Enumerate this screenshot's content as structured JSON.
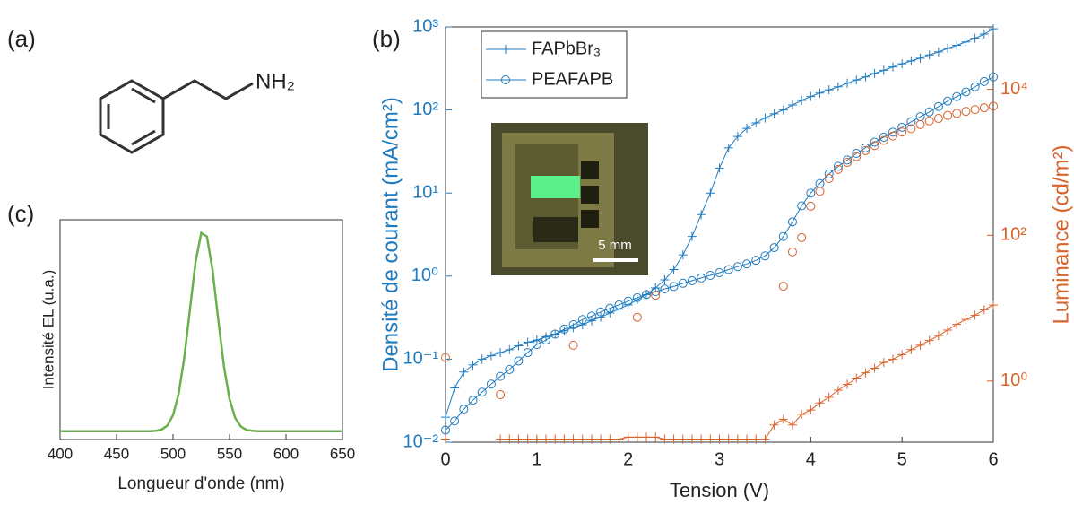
{
  "molecule": {
    "panel": "(a)",
    "group": "NH₂"
  },
  "inset": {
    "scale_label": "5 mm"
  },
  "chart_data": [
    {
      "type": "line",
      "panel": "(c)",
      "xlabel": "Longueur d'onde (nm)",
      "ylabel": "Intensité EL (u.a.)",
      "x": [
        400,
        405,
        410,
        415,
        420,
        425,
        430,
        435,
        440,
        445,
        450,
        455,
        460,
        465,
        470,
        475,
        480,
        485,
        490,
        495,
        500,
        505,
        510,
        515,
        520,
        525,
        530,
        535,
        540,
        545,
        550,
        555,
        560,
        565,
        570,
        575,
        580,
        585,
        590,
        595,
        600,
        605,
        610,
        615,
        620,
        625,
        630,
        635,
        640,
        645,
        650
      ],
      "values": [
        0.04,
        0.04,
        0.04,
        0.04,
        0.04,
        0.04,
        0.04,
        0.04,
        0.04,
        0.04,
        0.04,
        0.04,
        0.04,
        0.04,
        0.04,
        0.04,
        0.04,
        0.042,
        0.048,
        0.067,
        0.116,
        0.219,
        0.392,
        0.623,
        0.85,
        0.987,
        0.97,
        0.809,
        0.574,
        0.352,
        0.193,
        0.103,
        0.062,
        0.046,
        0.042,
        0.04,
        0.04,
        0.04,
        0.04,
        0.04,
        0.04,
        0.04,
        0.04,
        0.04,
        0.04,
        0.04,
        0.04,
        0.04,
        0.04,
        0.04,
        0.04
      ],
      "color": "#6ab04c",
      "xlim": [
        400,
        650
      ],
      "xticks": [
        400,
        450,
        500,
        550,
        600,
        650
      ],
      "ylim": [
        0,
        1.05
      ]
    },
    {
      "type": "line",
      "panel": "(b)",
      "xlabel": "Tension (V)",
      "ylabel": "Densité de courant (mA/cm²)",
      "y2label": "Luminance (cd/m²)",
      "y_color": "#1f7bbf",
      "y2_color": "#d9622b",
      "ylog": true,
      "y2log": true,
      "legend": "top-left",
      "x": [
        0,
        0.1,
        0.2,
        0.3,
        0.4,
        0.5,
        0.6,
        0.7,
        0.8,
        0.9,
        1,
        1.1,
        1.2,
        1.3,
        1.4,
        1.5,
        1.6,
        1.7,
        1.8,
        1.9,
        2,
        2.1,
        2.2,
        2.3,
        2.4,
        2.5,
        2.6,
        2.7,
        2.8,
        2.9,
        3,
        3.1,
        3.2,
        3.3,
        3.4,
        3.5,
        3.6,
        3.7,
        3.8,
        3.9,
        4,
        4.1,
        4.2,
        4.3,
        4.4,
        4.5,
        4.6,
        4.7,
        4.8,
        4.9,
        5,
        5.1,
        5.2,
        5.3,
        5.4,
        5.5,
        5.6,
        5.7,
        5.8,
        5.9,
        6
      ],
      "xlim": [
        0,
        6
      ],
      "xticks": [
        0,
        1,
        2,
        3,
        4,
        5,
        6
      ],
      "ylim": [
        0.01,
        1000
      ],
      "yticks": [
        {
          "value": 0.01,
          "label": "10⁻²"
        },
        {
          "value": 0.1,
          "label": "10⁻¹"
        },
        {
          "value": 1,
          "label": "10⁰"
        },
        {
          "value": 10,
          "label": "10¹"
        },
        {
          "value": 100,
          "label": "10²"
        },
        {
          "value": 1000,
          "label": "10³"
        }
      ],
      "y2lim": [
        0.145,
        72000
      ],
      "y2ticks": [
        {
          "value": 1,
          "label": "10⁰"
        },
        {
          "value": 100,
          "label": "10²"
        },
        {
          "value": 10000,
          "label": "10⁴"
        }
      ],
      "series": [
        {
          "name": "FAPbBr₃",
          "color": "#1f7bbf",
          "marker": "plus",
          "line": true,
          "values": [
            0.02,
            0.045,
            0.07,
            0.085,
            0.1,
            0.11,
            0.12,
            0.13,
            0.145,
            0.16,
            0.17,
            0.185,
            0.2,
            0.22,
            0.24,
            0.26,
            0.29,
            0.32,
            0.36,
            0.4,
            0.45,
            0.52,
            0.6,
            0.72,
            0.9,
            1.2,
            1.8,
            3,
            5.5,
            10,
            20,
            35,
            48,
            60,
            70,
            80,
            90,
            100,
            115,
            130,
            145,
            160,
            175,
            190,
            210,
            230,
            250,
            275,
            300,
            330,
            360,
            390,
            420,
            460,
            500,
            550,
            600,
            660,
            730,
            820,
            950
          ]
        },
        {
          "name": "PEAFAPB",
          "color": "#1f7bbf",
          "marker": "circle",
          "line": true,
          "values": [
            0.014,
            0.018,
            0.025,
            0.032,
            0.04,
            0.05,
            0.062,
            0.075,
            0.095,
            0.12,
            0.15,
            0.17,
            0.2,
            0.23,
            0.26,
            0.3,
            0.33,
            0.37,
            0.41,
            0.45,
            0.5,
            0.55,
            0.6,
            0.65,
            0.7,
            0.75,
            0.82,
            0.88,
            0.95,
            1.02,
            1.1,
            1.2,
            1.3,
            1.4,
            1.55,
            1.75,
            2.2,
            3,
            4.5,
            7,
            10,
            13,
            17,
            21,
            25,
            30,
            35,
            41,
            47,
            54,
            62,
            72,
            83,
            95,
            110,
            128,
            145,
            165,
            190,
            220,
            250
          ]
        },
        {
          "color": "#d9622b",
          "marker": "plus",
          "line": true,
          "axis": "y2",
          "values": [
            0.16,
            null,
            null,
            null,
            null,
            null,
            0.16,
            0.16,
            0.16,
            0.16,
            0.16,
            0.16,
            0.16,
            0.16,
            0.16,
            0.16,
            0.16,
            0.16,
            0.16,
            0.16,
            0.17,
            0.17,
            0.17,
            0.17,
            0.16,
            0.16,
            0.16,
            0.16,
            0.16,
            0.16,
            0.16,
            0.16,
            0.16,
            0.16,
            0.16,
            0.16,
            0.25,
            0.3,
            0.25,
            0.35,
            0.4,
            0.5,
            0.6,
            0.75,
            0.9,
            1.1,
            1.3,
            1.5,
            1.8,
            2.0,
            2.3,
            2.7,
            3.1,
            3.6,
            4.2,
            5,
            6,
            7,
            8,
            9.5,
            11
          ]
        },
        {
          "color": "#d9622b",
          "marker": "circle",
          "line": false,
          "axis": "y2",
          "values": [
            2.1,
            null,
            null,
            null,
            null,
            null,
            0.65,
            null,
            null,
            null,
            null,
            null,
            null,
            null,
            3.1,
            null,
            null,
            null,
            null,
            null,
            null,
            7.5,
            null,
            15,
            null,
            null,
            null,
            null,
            null,
            null,
            null,
            null,
            null,
            null,
            null,
            null,
            null,
            20,
            59,
            93,
            250,
            400,
            600,
            800,
            1000,
            1200,
            1450,
            1700,
            2000,
            2300,
            2600,
            2900,
            3300,
            3700,
            4000,
            4400,
            4700,
            5000,
            5300,
            5600,
            5900
          ]
        }
      ]
    }
  ]
}
